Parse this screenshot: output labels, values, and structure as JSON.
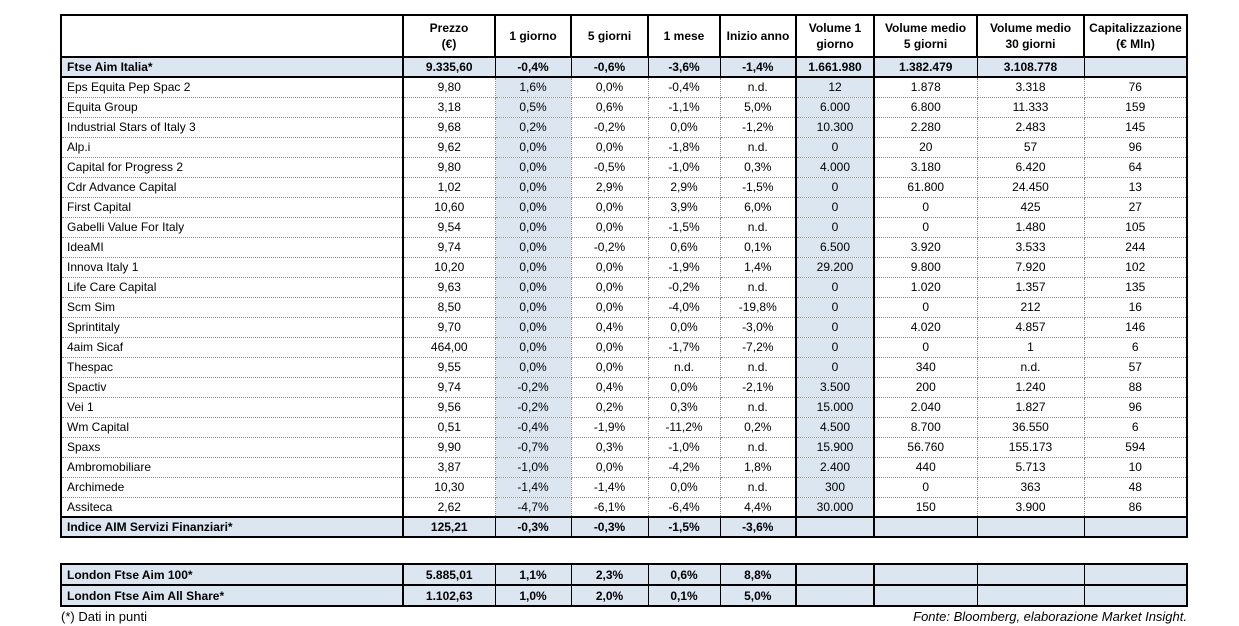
{
  "table": {
    "header": [
      "",
      "Prezzo\n(€)",
      "1 giorno",
      "5 giorni",
      "1 mese",
      "Inizio anno",
      "Volume 1\ngiorno",
      "Volume medio\n5 giorni",
      "Volume medio\n30 giorni",
      "Capitalizzazione\n(€ Mln)"
    ],
    "index_row": {
      "name": "Ftse Aim Italia*",
      "values": [
        "9.335,60",
        "-0,4%",
        "-0,6%",
        "-3,6%",
        "-1,4%",
        "1.661.980",
        "1.382.479",
        "3.108.778",
        ""
      ]
    },
    "rows": [
      {
        "name": "Eps Equita Pep Spac 2",
        "values": [
          "9,80",
          "1,6%",
          "0,0%",
          "-0,4%",
          "n.d.",
          "12",
          "1.878",
          "3.318",
          "76"
        ]
      },
      {
        "name": "Equita Group",
        "values": [
          "3,18",
          "0,5%",
          "0,6%",
          "-1,1%",
          "5,0%",
          "6.000",
          "6.800",
          "11.333",
          "159"
        ]
      },
      {
        "name": "Industrial Stars of Italy 3",
        "values": [
          "9,68",
          "0,2%",
          "-0,2%",
          "0,0%",
          "-1,2%",
          "10.300",
          "2.280",
          "2.483",
          "145"
        ]
      },
      {
        "name": "Alp.i",
        "values": [
          "9,62",
          "0,0%",
          "0,0%",
          "-1,8%",
          "n.d.",
          "0",
          "20",
          "57",
          "96"
        ]
      },
      {
        "name": "Capital for Progress 2",
        "values": [
          "9,80",
          "0,0%",
          "-0,5%",
          "-1,0%",
          "0,3%",
          "4.000",
          "3.180",
          "6.420",
          "64"
        ]
      },
      {
        "name": "Cdr Advance Capital",
        "values": [
          "1,02",
          "0,0%",
          "2,9%",
          "2,9%",
          "-1,5%",
          "0",
          "61.800",
          "24.450",
          "13"
        ]
      },
      {
        "name": "First Capital",
        "values": [
          "10,60",
          "0,0%",
          "0,0%",
          "3,9%",
          "6,0%",
          "0",
          "0",
          "425",
          "27"
        ]
      },
      {
        "name": "Gabelli Value For Italy",
        "values": [
          "9,54",
          "0,0%",
          "0,0%",
          "-1,5%",
          "n.d.",
          "0",
          "0",
          "1.480",
          "105"
        ]
      },
      {
        "name": "IdeaMI",
        "values": [
          "9,74",
          "0,0%",
          "-0,2%",
          "0,6%",
          "0,1%",
          "6.500",
          "3.920",
          "3.533",
          "244"
        ]
      },
      {
        "name": "Innova Italy 1",
        "values": [
          "10,20",
          "0,0%",
          "0,0%",
          "-1,9%",
          "1,4%",
          "29.200",
          "9.800",
          "7.920",
          "102"
        ]
      },
      {
        "name": "Life Care Capital",
        "values": [
          "9,63",
          "0,0%",
          "0,0%",
          "-0,2%",
          "n.d.",
          "0",
          "1.020",
          "1.357",
          "135"
        ]
      },
      {
        "name": "Scm Sim",
        "values": [
          "8,50",
          "0,0%",
          "0,0%",
          "-4,0%",
          "-19,8%",
          "0",
          "0",
          "212",
          "16"
        ]
      },
      {
        "name": "Sprintitaly",
        "values": [
          "9,70",
          "0,0%",
          "0,4%",
          "0,0%",
          "-3,0%",
          "0",
          "4.020",
          "4.857",
          "146"
        ]
      },
      {
        "name": "4aim Sicaf",
        "values": [
          "464,00",
          "0,0%",
          "0,0%",
          "-1,7%",
          "-7,2%",
          "0",
          "0",
          "1",
          "6"
        ]
      },
      {
        "name": "Thespac",
        "values": [
          "9,55",
          "0,0%",
          "0,0%",
          "n.d.",
          "n.d.",
          "0",
          "340",
          "n.d.",
          "57"
        ]
      },
      {
        "name": "Spactiv",
        "values": [
          "9,74",
          "-0,2%",
          "0,4%",
          "0,0%",
          "-2,1%",
          "3.500",
          "200",
          "1.240",
          "88"
        ]
      },
      {
        "name": "Vei 1",
        "values": [
          "9,56",
          "-0,2%",
          "0,2%",
          "0,3%",
          "n.d.",
          "15.000",
          "2.040",
          "1.827",
          "96"
        ]
      },
      {
        "name": "Wm Capital",
        "values": [
          "0,51",
          "-0,4%",
          "-1,9%",
          "-11,2%",
          "0,2%",
          "4.500",
          "8.700",
          "36.550",
          "6"
        ]
      },
      {
        "name": "Spaxs",
        "values": [
          "9,90",
          "-0,7%",
          "0,3%",
          "-1,0%",
          "n.d.",
          "15.900",
          "56.760",
          "155.173",
          "594"
        ]
      },
      {
        "name": "Ambromobiliare",
        "values": [
          "3,87",
          "-1,0%",
          "0,0%",
          "-4,2%",
          "1,8%",
          "2.400",
          "440",
          "5.713",
          "10"
        ]
      },
      {
        "name": "Archimede",
        "values": [
          "10,30",
          "-1,4%",
          "-1,4%",
          "0,0%",
          "n.d.",
          "300",
          "0",
          "363",
          "48"
        ]
      },
      {
        "name": "Assiteca",
        "values": [
          "2,62",
          "-4,7%",
          "-6,1%",
          "-6,4%",
          "4,4%",
          "30.000",
          "150",
          "3.900",
          "86"
        ]
      }
    ],
    "financial_index_row": {
      "name": "Indice AIM Servizi Finanziari*",
      "values": [
        "125,21",
        "-0,3%",
        "-0,3%",
        "-1,5%",
        "-3,6%",
        "",
        "",
        "",
        ""
      ]
    },
    "london_rows": [
      {
        "name": "London Ftse Aim 100*",
        "values": [
          "5.885,01",
          "1,1%",
          "2,3%",
          "0,6%",
          "8,8%",
          "",
          "",
          "",
          ""
        ]
      },
      {
        "name": "London Ftse Aim All Share*",
        "values": [
          "1.102,63",
          "1,0%",
          "2,0%",
          "0,1%",
          "5,0%",
          "",
          "",
          "",
          ""
        ]
      }
    ]
  },
  "footnotes": {
    "left": "(*) Dati in punti",
    "right": "Fonte: Bloomberg, elaborazione Market Insight."
  },
  "colors": {
    "highlight": "#dce6f1",
    "border": "#000000"
  }
}
